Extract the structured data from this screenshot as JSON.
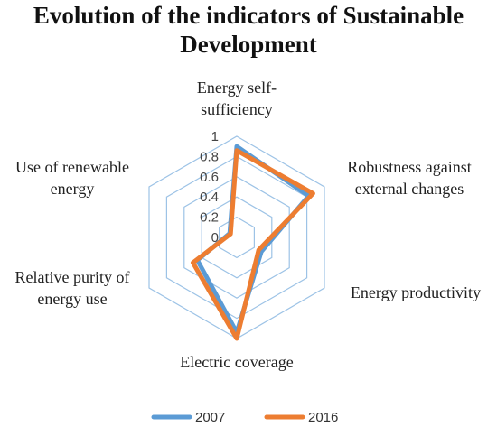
{
  "chart_data": {
    "type": "radar",
    "title_lines": [
      "Evolution of the indicators of Sustainable",
      "Development"
    ],
    "axes": [
      {
        "lines": [
          "Energy self-",
          "sufficiency"
        ]
      },
      {
        "lines": [
          "Robustness against",
          "external changes"
        ]
      },
      {
        "lines": [
          "Energy productivity"
        ]
      },
      {
        "lines": [
          "Electric coverage"
        ]
      },
      {
        "lines": [
          "Relative purity of",
          "energy use"
        ]
      },
      {
        "lines": [
          "Use of renewable",
          "energy"
        ]
      }
    ],
    "ticks": [
      0,
      0.2,
      0.4,
      0.6,
      0.8,
      1
    ],
    "tick_labels": [
      "0",
      "0.2",
      "0.4",
      "0.6",
      "0.8",
      "1"
    ],
    "range": [
      0,
      1
    ],
    "series": [
      {
        "name": "2007",
        "color": "#5b9bd5",
        "values": [
          0.9,
          0.82,
          0.28,
          0.94,
          0.45,
          0.08
        ]
      },
      {
        "name": "2016",
        "color": "#ed7d31",
        "values": [
          0.86,
          0.87,
          0.25,
          1.0,
          0.5,
          0.07
        ]
      }
    ],
    "grid_color": "#9dc3e6",
    "legend_position": "bottom"
  }
}
